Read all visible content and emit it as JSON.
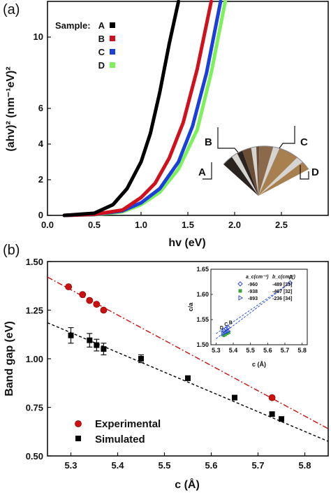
{
  "chart_data": [
    {
      "type": "line",
      "panel_label": "(a)",
      "xlabel": "hv (eV)",
      "ylabel": "(ahv)² (nm⁻¹eV)²",
      "xlim": [
        0.0,
        3.0
      ],
      "ylim": [
        0,
        12
      ],
      "xticks": [
        "0.0",
        "0.5",
        "1.0",
        "1.5",
        "2.0",
        "2.5"
      ],
      "yticks": [
        "0",
        "2",
        "4",
        "6",
        "10"
      ],
      "legend_title": "Sample:",
      "legend_position": "top-left",
      "series": [
        {
          "name": "A",
          "color": "#000000",
          "x": [
            0.18,
            0.5,
            0.7,
            0.85,
            1.0,
            1.1,
            1.2,
            1.3,
            1.4
          ],
          "y": [
            0.0,
            0.12,
            0.6,
            1.5,
            3.0,
            4.6,
            6.9,
            9.6,
            12
          ]
        },
        {
          "name": "B",
          "color": "#d0101c",
          "x": [
            0.18,
            0.5,
            0.8,
            1.0,
            1.15,
            1.3,
            1.45,
            1.6,
            1.75
          ],
          "y": [
            0.0,
            0.06,
            0.3,
            1.0,
            1.8,
            3.2,
            5.2,
            8.2,
            12
          ]
        },
        {
          "name": "C",
          "color": "#1a3fdc",
          "x": [
            0.18,
            0.5,
            0.8,
            1.0,
            1.2,
            1.4,
            1.55,
            1.7,
            1.85
          ],
          "y": [
            0.0,
            0.05,
            0.25,
            0.7,
            1.5,
            3.0,
            5.0,
            8.0,
            12
          ]
        },
        {
          "name": "D",
          "color": "#7df05a",
          "x": [
            0.18,
            0.5,
            0.8,
            1.0,
            1.2,
            1.4,
            1.6,
            1.75,
            1.9
          ],
          "y": [
            0.0,
            0.04,
            0.2,
            0.6,
            1.3,
            2.6,
            4.8,
            8.0,
            12
          ]
        }
      ],
      "photo_labels": [
        "A",
        "B",
        "C",
        "D"
      ]
    },
    {
      "type": "scatter",
      "panel_label": "(b)",
      "xlabel": "c (Å)",
      "ylabel": "Band gap (eV)",
      "xlim": [
        5.25,
        5.85
      ],
      "ylim": [
        0.5,
        1.5
      ],
      "xticks": [
        "5.3",
        "5.4",
        "5.5",
        "5.6",
        "5.7",
        "5.8"
      ],
      "yticks": [
        "0.50",
        "0.75",
        "1.00",
        "1.25",
        "1.50"
      ],
      "legend_position": "bottom-left",
      "series": [
        {
          "name": "Experimental",
          "color": "#cc1010",
          "x": [
            5.295,
            5.325,
            5.34,
            5.355,
            5.37,
            5.73
          ],
          "y": [
            1.37,
            1.33,
            1.3,
            1.28,
            1.25,
            0.8
          ]
        },
        {
          "name": "Simulated",
          "color": "#000000",
          "x": [
            5.3,
            5.34,
            5.355,
            5.37,
            5.45,
            5.55,
            5.65,
            5.73,
            5.75
          ],
          "y": [
            1.12,
            1.095,
            1.07,
            1.05,
            1.0,
            0.9,
            0.8,
            0.715,
            0.69
          ],
          "err": [
            0.04,
            0.035,
            0.03,
            0.03,
            0.02,
            0.012,
            0.01,
            0.01,
            0.01
          ]
        }
      ],
      "fits": [
        {
          "color": "#cc1010",
          "x": [
            5.25,
            5.85
          ],
          "y": [
            1.42,
            0.64
          ]
        },
        {
          "color": "#000000",
          "x": [
            5.25,
            5.85
          ],
          "y": [
            1.185,
            0.575
          ]
        }
      ]
    },
    {
      "type": "scatter",
      "panel_label": "inset",
      "xlabel": "c (Å)",
      "ylabel": "c/a",
      "xlim": [
        5.27,
        5.83
      ],
      "ylim": [
        1.5,
        1.65
      ],
      "xticks": [
        "5.3",
        "5.4",
        "5.5",
        "5.6",
        "5.7",
        "5.8"
      ],
      "yticks": [
        "1.50",
        "1.55",
        "1.60",
        "1.65"
      ],
      "legend_header": [
        "a_c(cm⁻¹)",
        "b_c(cm⁻¹)"
      ],
      "legend_rows": [
        {
          "marker": "diamond",
          "color": "#1a3fdc",
          "a": "-960",
          "b": "-489 [33]"
        },
        {
          "marker": "square",
          "color": "#3aa63a",
          "a": "-938",
          "b": "-407 [32]"
        },
        {
          "marker": "triangle",
          "color": "#1a3fdc",
          "a": "-893",
          "b": "-236 [34]"
        }
      ],
      "point_labels": [
        "A",
        "B",
        "C",
        "D"
      ],
      "series": [
        {
          "name": "diamond",
          "color": "#1a3fdc",
          "x": [
            5.345,
            5.36,
            5.37,
            5.73
          ],
          "y": [
            1.528,
            1.532,
            1.534,
            1.623
          ]
        },
        {
          "name": "square",
          "color": "#3aa63a",
          "x": [
            5.345,
            5.355,
            5.365,
            5.375
          ],
          "y": [
            1.518,
            1.52,
            1.522,
            1.524
          ]
        },
        {
          "name": "triangle",
          "color": "#1a3fdc",
          "x": [
            5.34,
            5.35,
            5.36,
            5.37
          ],
          "y": [
            1.522,
            1.524,
            1.526,
            1.527
          ]
        }
      ]
    }
  ]
}
